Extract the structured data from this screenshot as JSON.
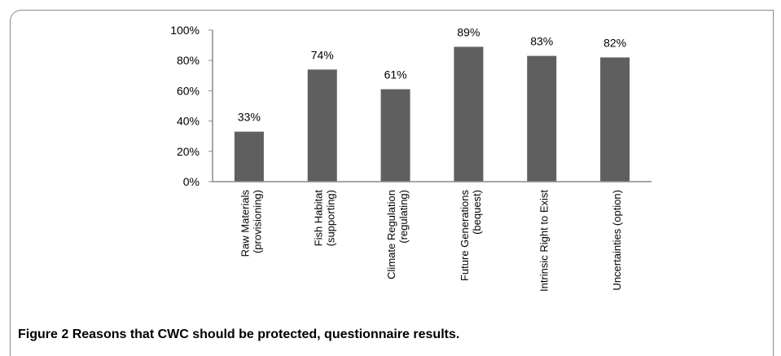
{
  "chart_data": {
    "type": "bar",
    "categories": [
      [
        "Raw Materials",
        "(provisioning)"
      ],
      [
        "Fish Habitat",
        "(supporting)"
      ],
      [
        "Climate Regulation",
        "(regulating)"
      ],
      [
        "Future Generations",
        "(bequest)"
      ],
      [
        "Intrinsic Right to Exist"
      ],
      [
        "Uncertainties (option)"
      ]
    ],
    "values": [
      33,
      74,
      61,
      89,
      83,
      82
    ],
    "value_labels": [
      "33%",
      "74%",
      "61%",
      "89%",
      "83%",
      "82%"
    ],
    "yticks": [
      "0%",
      "20%",
      "40%",
      "60%",
      "80%",
      "100%"
    ],
    "ylim": [
      0,
      100
    ],
    "bar_color": "#5f5f5f",
    "axis_color": "#8a8a8a",
    "grid": false,
    "legend": "none"
  },
  "caption": {
    "number": "Figure 2",
    "text": "Reasons that CWC should be protected, questionnaire results."
  }
}
